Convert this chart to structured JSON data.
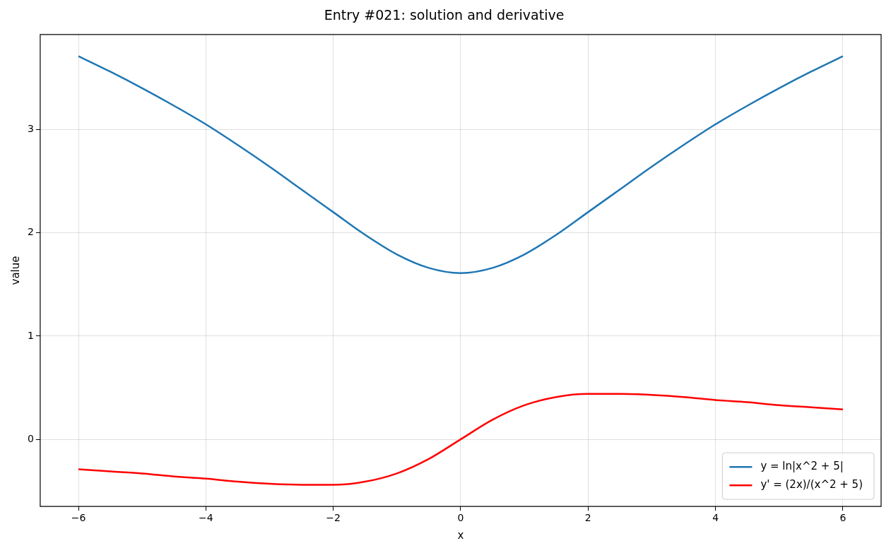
{
  "chart_data": {
    "type": "line",
    "title": "Entry #021: solution and derivative",
    "xlabel": "x",
    "ylabel": "value",
    "x": [
      -6,
      -5.5,
      -5,
      -4.5,
      -4,
      -3.5,
      -3,
      -2.5,
      -2,
      -1.5,
      -1,
      -0.5,
      0,
      0.5,
      1,
      1.5,
      2,
      2.5,
      3,
      3.5,
      4,
      4.5,
      5,
      5.5,
      6
    ],
    "series": [
      {
        "name": "y = ln|x^2 + 5|",
        "color": "#1f77b4",
        "values": [
          3.71,
          3.56,
          3.4,
          3.23,
          3.05,
          2.85,
          2.64,
          2.42,
          2.2,
          1.98,
          1.79,
          1.66,
          1.61,
          1.66,
          1.79,
          1.98,
          2.2,
          2.42,
          2.64,
          2.85,
          3.05,
          3.23,
          3.4,
          3.56,
          3.71
        ]
      },
      {
        "name": "y' = (2x)/(x^2 + 5)",
        "color": "#ff0000",
        "values": [
          -0.29,
          -0.31,
          -0.33,
          -0.36,
          -0.38,
          -0.41,
          -0.43,
          -0.44,
          -0.44,
          -0.41,
          -0.33,
          -0.19,
          0,
          0.19,
          0.33,
          0.41,
          0.44,
          0.44,
          0.43,
          0.41,
          0.38,
          0.36,
          0.33,
          0.31,
          0.29
        ]
      }
    ],
    "xlim": [
      -6.6,
      6.6
    ],
    "ylim": [
      -0.65,
      3.92
    ],
    "xticks": [
      {
        "value": -6,
        "label": "−6"
      },
      {
        "value": -4,
        "label": "−4"
      },
      {
        "value": -2,
        "label": "−2"
      },
      0,
      2,
      4,
      6
    ],
    "yticks": [
      0,
      1,
      2,
      3
    ],
    "grid": true,
    "legend": "bottom right",
    "marker": "none",
    "line_style": "solid"
  }
}
